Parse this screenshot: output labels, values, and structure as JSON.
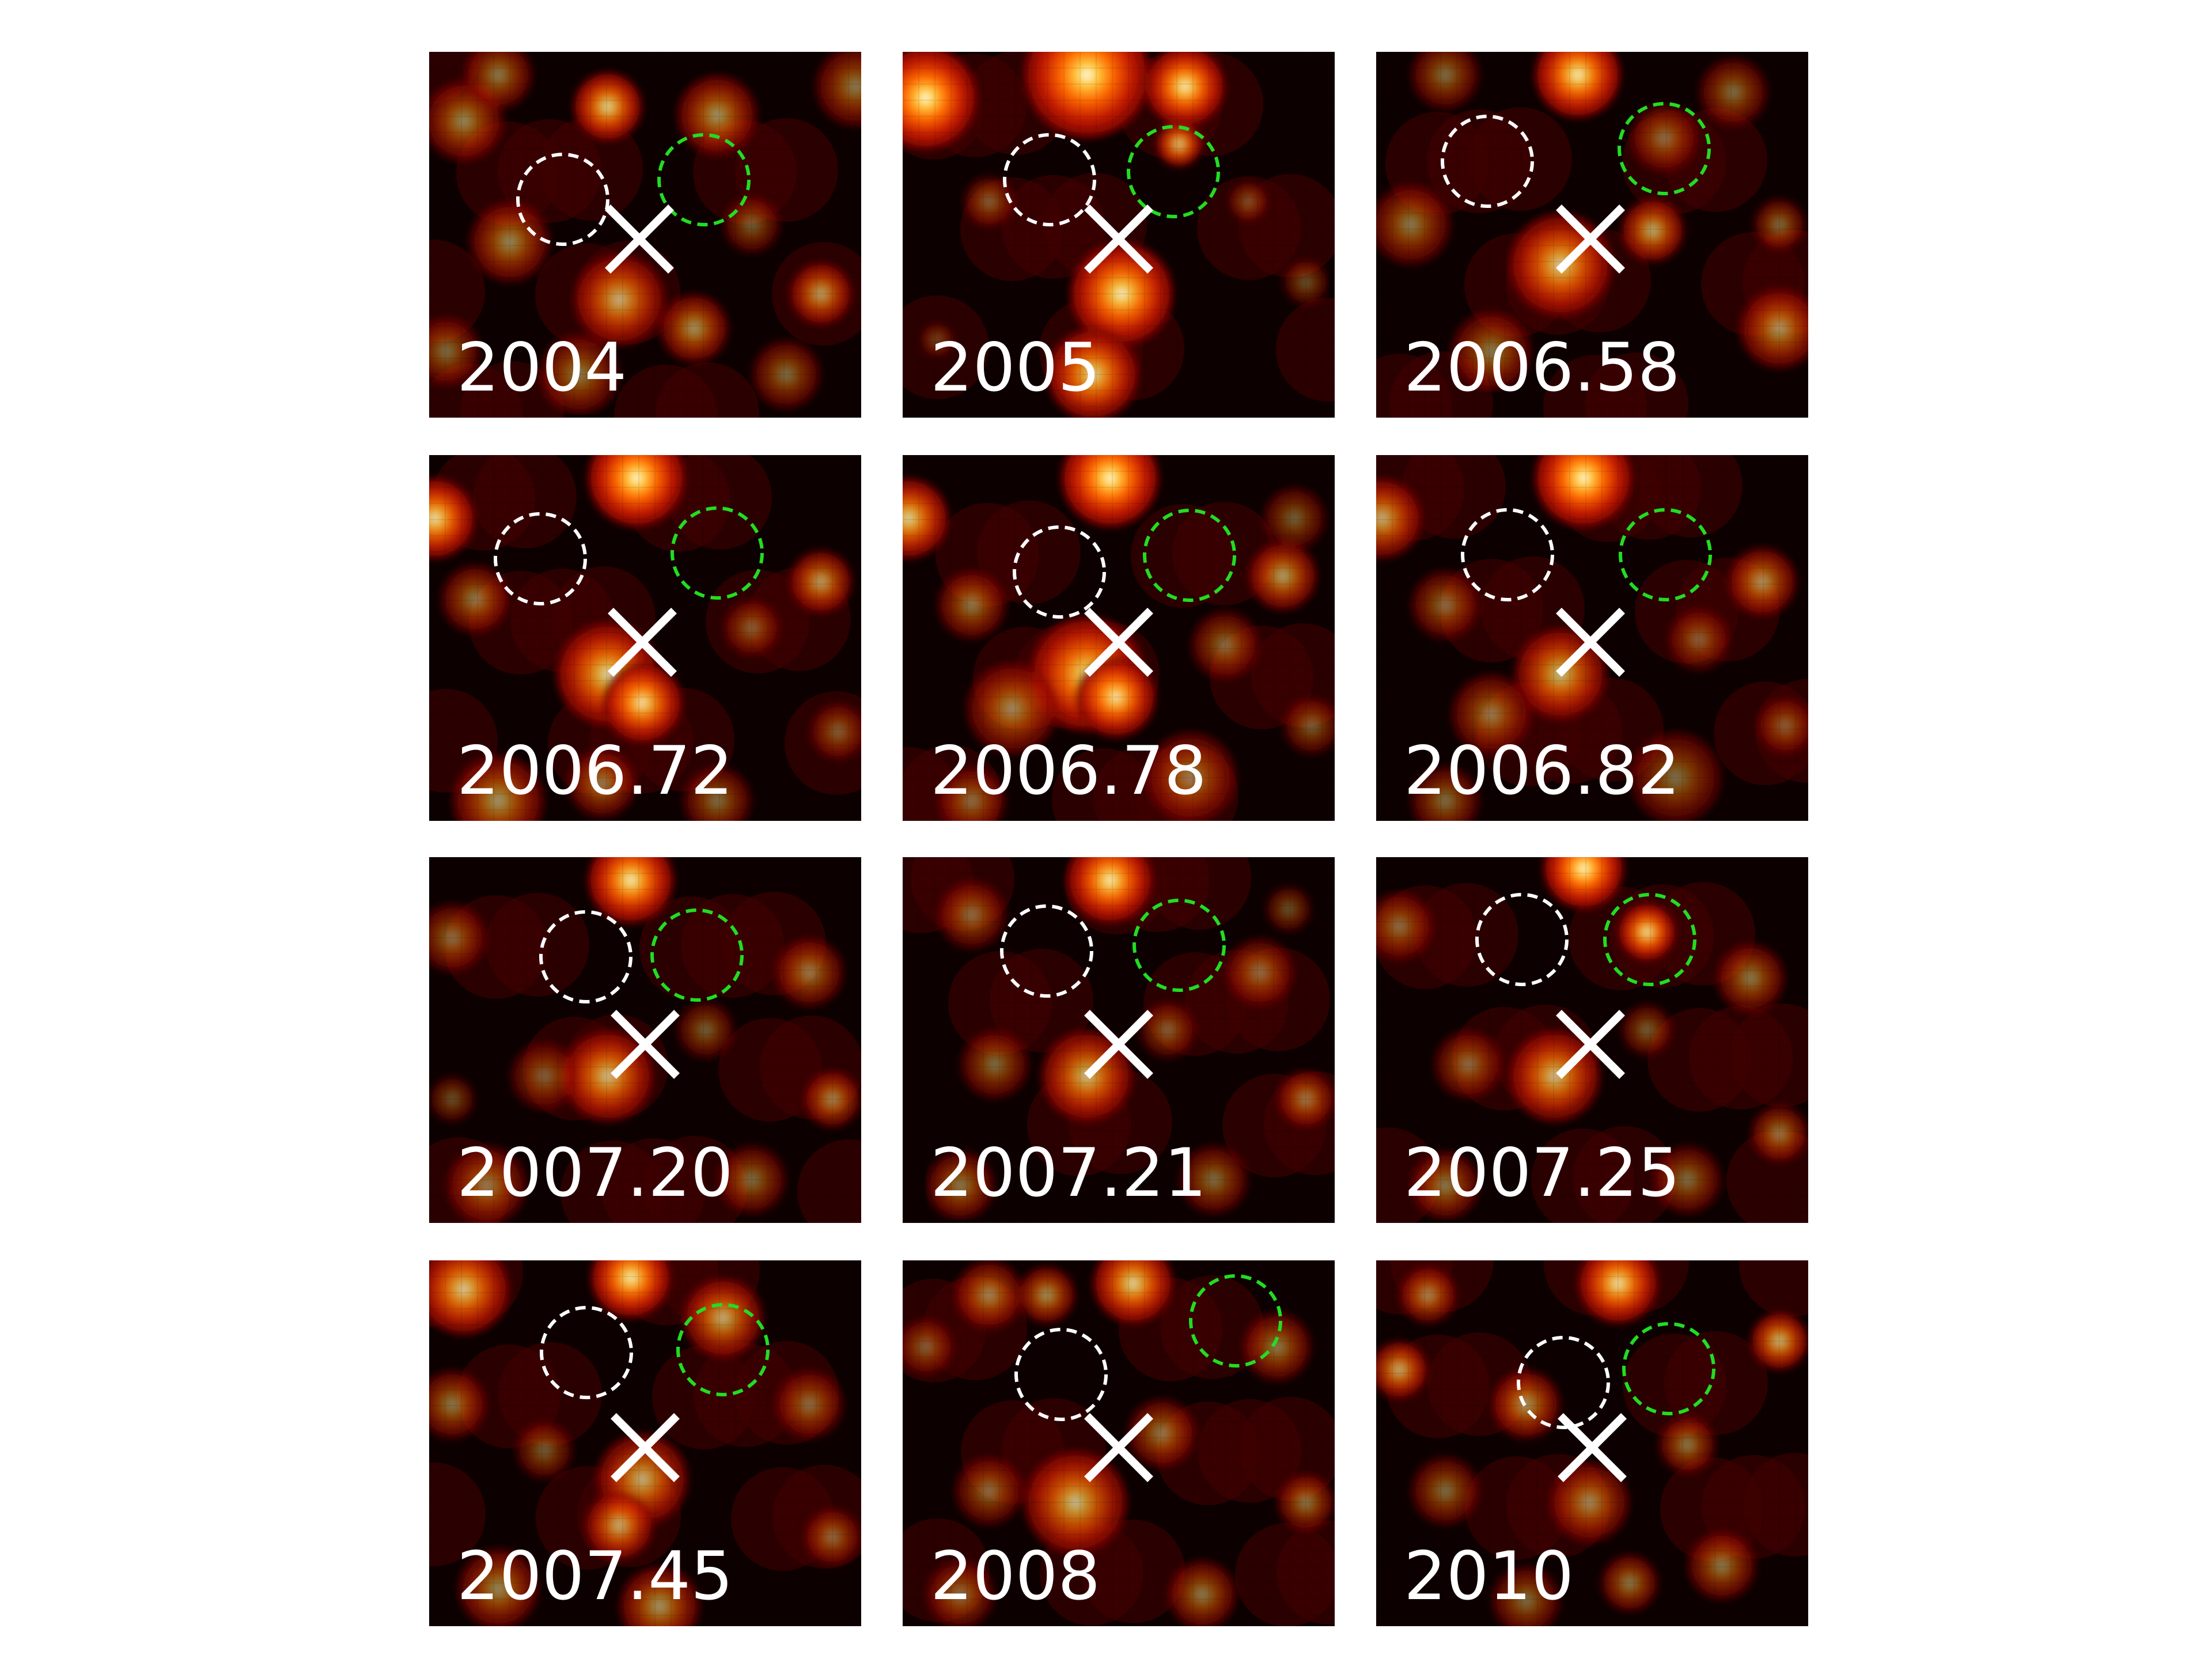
{
  "figure": {
    "panels": [
      {
        "epoch": "2004"
      },
      {
        "epoch": "2005"
      },
      {
        "epoch": "2006.58"
      },
      {
        "epoch": "2006.72"
      },
      {
        "epoch": "2006.78"
      },
      {
        "epoch": "2006.82"
      },
      {
        "epoch": "2007.20"
      },
      {
        "epoch": "2007.21"
      },
      {
        "epoch": "2007.25"
      },
      {
        "epoch": "2007.45"
      },
      {
        "epoch": "2008"
      },
      {
        "epoch": "2010"
      }
    ],
    "colors": {
      "background": "#ffffff",
      "colormap": [
        "#0d0000",
        "#6a0000",
        "#c41a00",
        "#ff6a00",
        "#ffd040",
        "#ffffff"
      ],
      "reference_circle": "#ffffff",
      "comparison_circle": "#22dd22",
      "cross_marker": "#ffffff",
      "label_text": "#ffffff"
    },
    "icons": {
      "reference_circle": "dashed-white-circle",
      "comparison_circle": "dashed-green-circle",
      "cross_marker": "x-cross-marker"
    }
  }
}
